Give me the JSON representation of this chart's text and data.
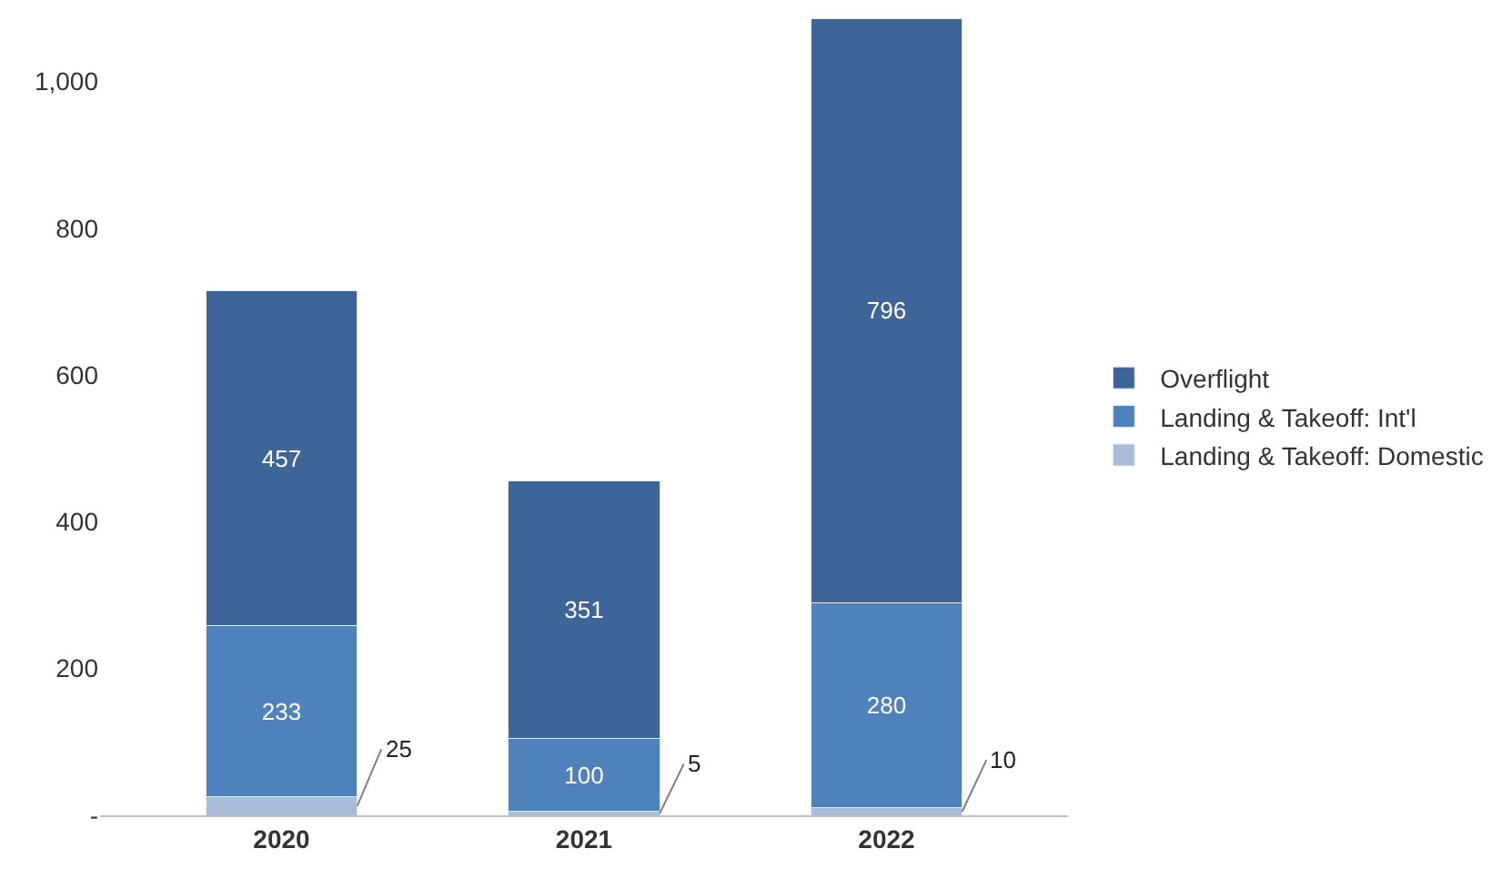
{
  "chart_data": {
    "type": "bar",
    "stacked": true,
    "categories": [
      "2020",
      "2021",
      "2022"
    ],
    "series": [
      {
        "name": "Landing & Takeoff: Domestic",
        "color": "#a9bcd9",
        "values": [
          25,
          5,
          10
        ]
      },
      {
        "name": "Landing & Takeoff: Int'l",
        "color": "#4f81bd",
        "values": [
          233,
          100,
          280
        ]
      },
      {
        "name": "Overflight",
        "color": "#3e6599",
        "values": [
          457,
          351,
          796
        ]
      }
    ],
    "ylim": [
      0,
      1086
    ],
    "yticks": [
      {
        "value": 0,
        "label": "-"
      },
      200,
      400,
      600,
      800,
      {
        "value": 1000,
        "label": "1,000"
      }
    ],
    "legend": "right",
    "data_labels": true
  }
}
